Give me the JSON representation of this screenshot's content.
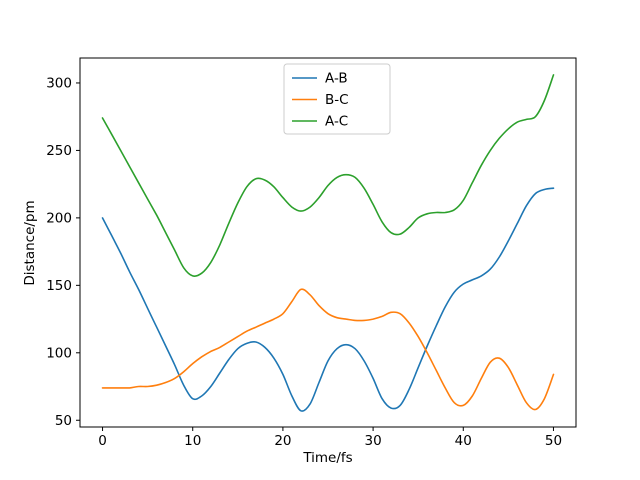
{
  "chart_data": {
    "type": "line",
    "title": "",
    "xlabel": "Time/fs",
    "ylabel": "Distance/pm",
    "xlim": [
      -2.5,
      52.5
    ],
    "ylim": [
      45,
      318.5
    ],
    "xticks": [
      0,
      10,
      20,
      30,
      40,
      50
    ],
    "yticks": [
      50,
      100,
      150,
      200,
      250,
      300
    ],
    "grid": false,
    "legend_position": "upper center",
    "x": [
      0,
      1,
      2,
      3,
      4,
      5,
      6,
      7,
      8,
      9,
      10,
      11,
      12,
      13,
      14,
      15,
      16,
      17,
      18,
      19,
      20,
      21,
      22,
      23,
      24,
      25,
      26,
      27,
      28,
      29,
      30,
      31,
      32,
      33,
      34,
      35,
      36,
      37,
      38,
      39,
      40,
      41,
      42,
      43,
      44,
      45,
      46,
      47,
      48,
      49,
      50
    ],
    "series": [
      {
        "name": "A-B",
        "color": "#1f77b4",
        "values": [
          200,
          187,
          174,
          160,
          147,
          133,
          119,
          105,
          91,
          76,
          66,
          68,
          75,
          85,
          95,
          103,
          107,
          108,
          104,
          96,
          84,
          68,
          57,
          62,
          78,
          94,
          103,
          106,
          103,
          94,
          81,
          66,
          59,
          61,
          73,
          89,
          105,
          120,
          134,
          145,
          151,
          154,
          157,
          162,
          171,
          183,
          196,
          209,
          218,
          221,
          222
        ]
      },
      {
        "name": "B-C",
        "color": "#ff7f0e",
        "values": [
          74,
          74,
          74,
          74,
          75,
          75,
          76,
          78,
          81,
          86,
          92,
          97,
          101,
          104,
          108,
          112,
          116,
          119,
          122,
          125,
          129,
          138,
          147,
          143,
          135,
          129,
          126,
          125,
          124,
          124,
          125,
          127,
          130,
          129,
          122,
          112,
          100,
          87,
          74,
          63,
          61,
          68,
          81,
          93,
          96,
          89,
          76,
          63,
          58,
          66,
          84
        ]
      },
      {
        "name": "A-C",
        "color": "#2ca02c",
        "values": [
          274,
          262,
          250,
          238,
          226,
          214,
          202,
          189,
          176,
          163,
          157,
          159,
          167,
          180,
          196,
          211,
          223,
          229,
          228,
          223,
          215,
          208,
          205,
          208,
          215,
          224,
          230,
          232,
          230,
          222,
          210,
          197,
          189,
          188,
          193,
          200,
          203,
          204,
          204,
          206,
          213,
          226,
          239,
          250,
          259,
          266,
          271,
          273,
          275,
          287,
          306
        ]
      }
    ]
  }
}
